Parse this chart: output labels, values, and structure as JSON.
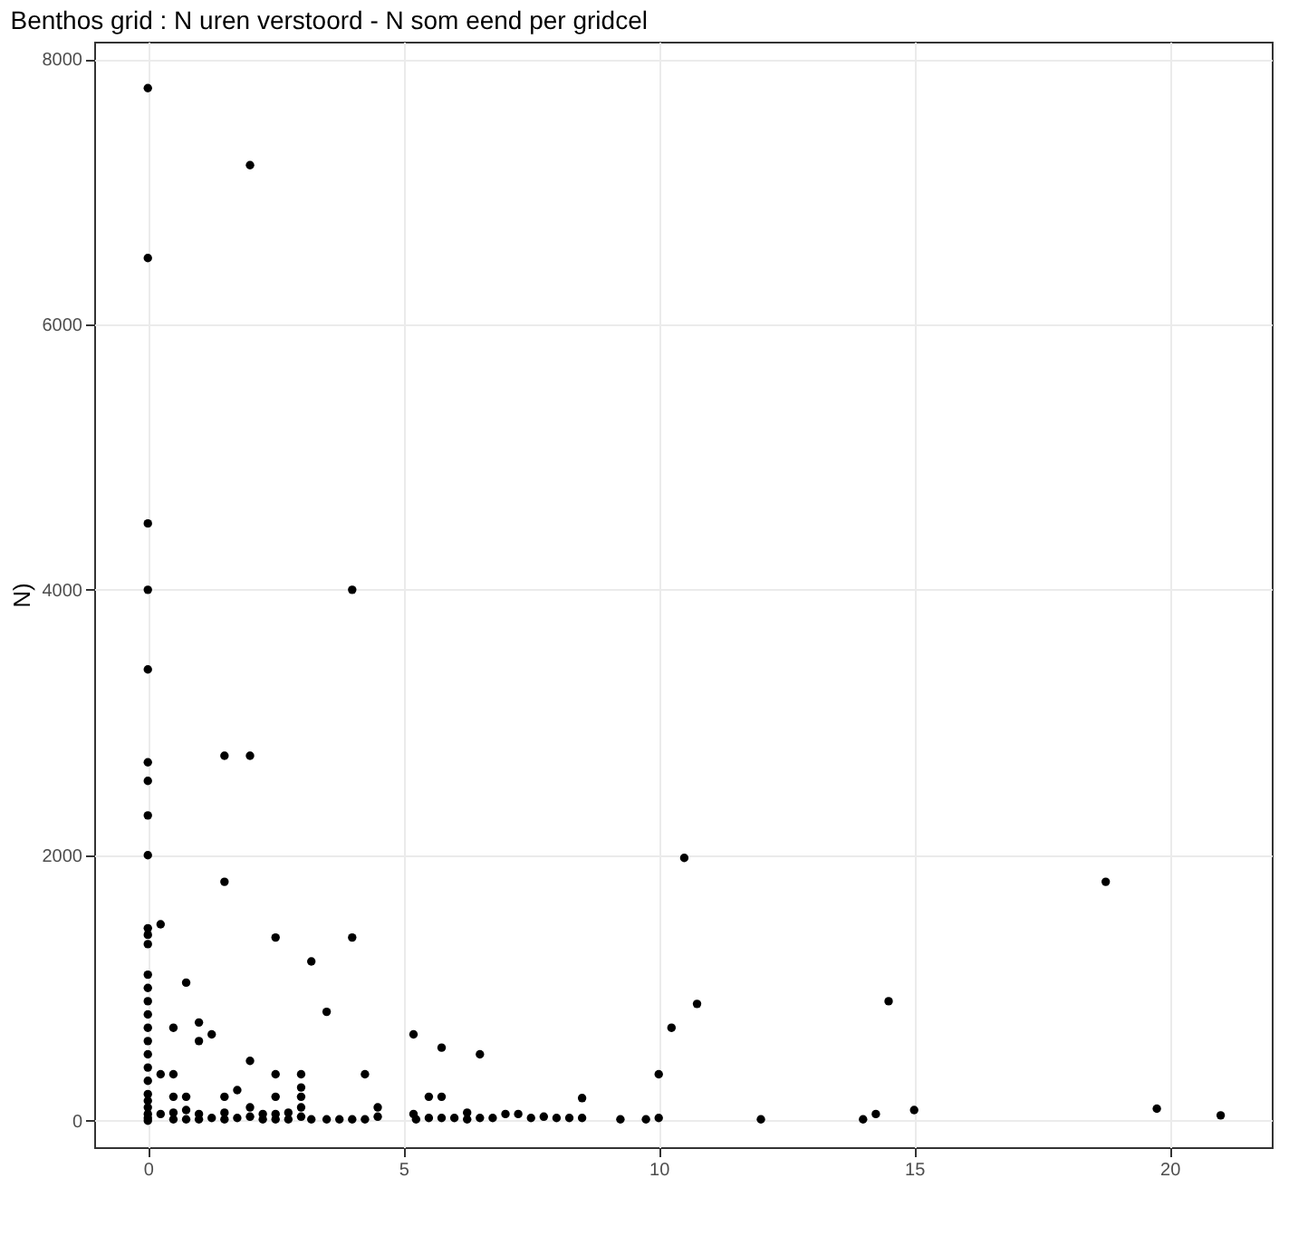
{
  "chart_data": {
    "type": "scatter",
    "title": "Benthos grid : N uren verstoord - N som eend per gridcel",
    "ylabel": "N)",
    "x": [
      0,
      0,
      0,
      0,
      0,
      0,
      0,
      0,
      0,
      0,
      0,
      0,
      0,
      0,
      0,
      0,
      0,
      0,
      0,
      0,
      0,
      0,
      0,
      0,
      0,
      0,
      0,
      0.25,
      0.25,
      0.25,
      0.5,
      0.5,
      0.5,
      0.5,
      0.5,
      0.75,
      0.75,
      0.75,
      0.75,
      1,
      1,
      1,
      1,
      1.25,
      1.25,
      1.5,
      1.5,
      1.5,
      1.5,
      1.5,
      1.75,
      1.75,
      2,
      2,
      2,
      2,
      2,
      2.25,
      2.25,
      2.5,
      2.5,
      2.5,
      2.5,
      2.5,
      2.75,
      2.75,
      3,
      3,
      3,
      3,
      3,
      3.2,
      3.2,
      3.5,
      3.5,
      3.75,
      4,
      4,
      4,
      4.25,
      4.25,
      4.5,
      4.5,
      5.2,
      5.2,
      5.25,
      5.5,
      5.5,
      5.75,
      5.75,
      5.75,
      6,
      6.25,
      6.25,
      6.5,
      6.5,
      6.75,
      7,
      7.25,
      7.5,
      7.75,
      8,
      8.25,
      8.5,
      8.5,
      9.25,
      9.75,
      10,
      10,
      10.25,
      10.5,
      10.75,
      12,
      14,
      14.25,
      14.5,
      15,
      18.75,
      19.75,
      21
    ],
    "values": [
      7780,
      6500,
      4500,
      4000,
      3400,
      2700,
      2560,
      2300,
      2000,
      1450,
      1400,
      1330,
      1100,
      1000,
      900,
      800,
      700,
      600,
      500,
      400,
      300,
      200,
      150,
      100,
      50,
      20,
      0,
      1480,
      350,
      50,
      700,
      350,
      180,
      60,
      10,
      1040,
      180,
      80,
      10,
      740,
      600,
      50,
      10,
      650,
      20,
      2750,
      1800,
      180,
      60,
      10,
      230,
      20,
      7200,
      2750,
      450,
      100,
      30,
      50,
      10,
      1380,
      350,
      180,
      50,
      10,
      60,
      10,
      350,
      250,
      180,
      100,
      30,
      1200,
      10,
      820,
      10,
      10,
      4000,
      1380,
      10,
      350,
      10,
      100,
      30,
      650,
      50,
      10,
      180,
      20,
      550,
      180,
      20,
      20,
      60,
      10,
      500,
      20,
      20,
      50,
      50,
      20,
      30,
      20,
      20,
      170,
      20,
      10,
      10,
      350,
      20,
      700,
      1980,
      880,
      10,
      10,
      50,
      900,
      80,
      1800,
      90,
      40
    ],
    "color": "#000000",
    "marker": "circle",
    "xlim": [
      -1.05,
      22
    ],
    "xticks": [
      0,
      5,
      10,
      15,
      20
    ],
    "ylim": [
      -200,
      8130
    ],
    "yticks": [
      0,
      2000,
      4000,
      6000,
      8000
    ],
    "grid": true
  }
}
